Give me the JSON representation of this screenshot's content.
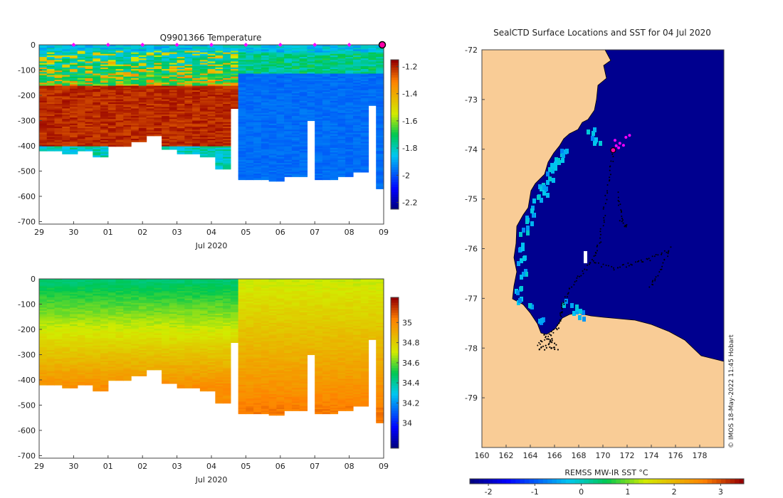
{
  "figure": {
    "copyright": "© IMOS 18-May-2022 11:45 Hobart"
  },
  "chart_data": [
    {
      "type": "heatmap",
      "id": "temperature",
      "title": "Q9901366  Temperature",
      "xlabel": "Jul 2020",
      "x_ticks": [
        "29",
        "30",
        "01",
        "02",
        "03",
        "04",
        "05",
        "06",
        "07",
        "08",
        "09"
      ],
      "x_range": [
        29,
        39
      ],
      "y_ticks": [
        "0",
        "-100",
        "-200",
        "-300",
        "-400",
        "-500",
        "-600",
        "-700"
      ],
      "ylim": [
        -710,
        0
      ],
      "profile_marker_days": [
        30,
        31,
        32,
        33,
        34,
        35,
        36,
        37,
        38
      ],
      "current_day": 39,
      "colorbar": {
        "range": [
          -2.25,
          -1.15
        ],
        "ticks": [
          "-1.2",
          "-1.4",
          "-1.6",
          "-1.8",
          "-2",
          "-2.2"
        ]
      },
      "profile_depth_m": [
        420,
        430,
        420,
        440,
        400,
        380,
        360,
        410,
        430,
        440,
        490,
        530,
        530,
        540,
        520,
        520,
        530,
        520,
        500,
        570
      ],
      "note": "Warm (about -1.2) layer roughly 170-400 m from 29 Jun to 04 Jul; near freezing (about -1.95) afterwards."
    },
    {
      "type": "heatmap",
      "id": "salinity",
      "title": "",
      "xlabel": "Jul 2020",
      "x_ticks": [
        "29",
        "30",
        "01",
        "02",
        "03",
        "04",
        "05",
        "06",
        "07",
        "08",
        "09"
      ],
      "x_range": [
        29,
        39
      ],
      "y_ticks": [
        "0",
        "-100",
        "-200",
        "-300",
        "-400",
        "-500",
        "-600",
        "-700"
      ],
      "ylim": [
        -710,
        0
      ],
      "colorbar": {
        "range": [
          33.75,
          35.25
        ],
        "ticks": [
          "35",
          "34.8",
          "34.6",
          "34.4",
          "34.2",
          "34"
        ]
      },
      "note": "Fresher (about 34.4) near surface, saltier (about 35.0) at depth."
    },
    {
      "type": "heatmap",
      "id": "sst_map",
      "title": "SealCTD Surface Locations and SST for 04 Jul 2020",
      "xlabel": "",
      "ylabel": "",
      "x_ticks": [
        "160",
        "162",
        "164",
        "166",
        "168",
        "170",
        "172",
        "174",
        "176",
        "178"
      ],
      "y_ticks": [
        "-72",
        "-73",
        "-74",
        "-75",
        "-76",
        "-77",
        "-78",
        "-79"
      ],
      "x_range": [
        160,
        180
      ],
      "y_range": [
        -80,
        -72
      ],
      "colorbar": {
        "label": "REMSS MW-IR SST °C",
        "range": [
          -2.4,
          3.5
        ],
        "ticks": [
          "-2",
          "-1",
          "0",
          "1",
          "2",
          "3"
        ]
      },
      "surface_locations_recent": [
        {
          "lon": 171.0,
          "lat": -73.82
        },
        {
          "lon": 171.4,
          "lat": -73.88
        },
        {
          "lon": 171.7,
          "lat": -73.92
        },
        {
          "lon": 171.9,
          "lat": -73.76
        },
        {
          "lon": 172.2,
          "lat": -73.72
        },
        {
          "lon": 171.3,
          "lat": -73.97
        },
        {
          "lon": 171.1,
          "lat": -73.93
        }
      ],
      "current_location": {
        "lon": 170.85,
        "lat": -74.02
      }
    }
  ],
  "colors": {
    "land": "#f9cc96",
    "ocean": "#00008f",
    "marker": "#ff00ff",
    "current_marker_fill": "#ff00aa"
  }
}
